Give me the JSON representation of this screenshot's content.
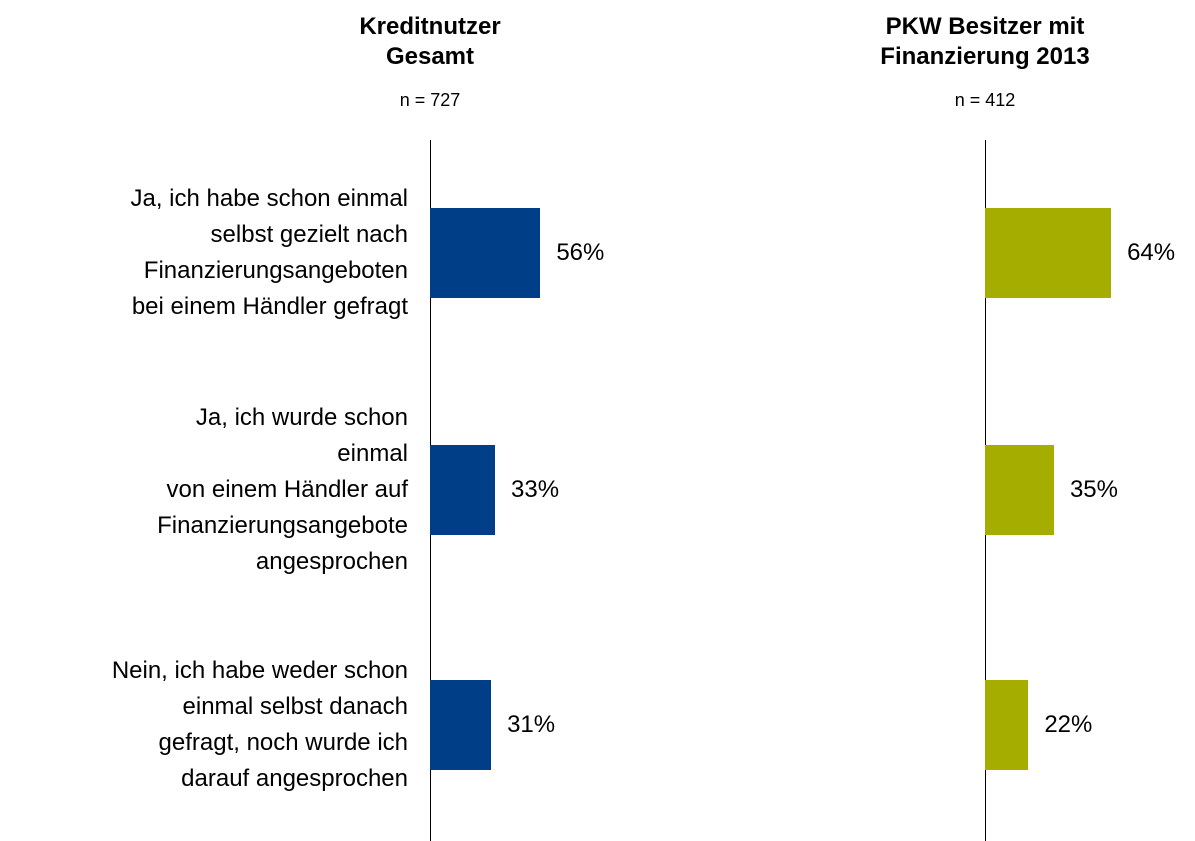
{
  "chart_data": [
    {
      "type": "bar",
      "orientation": "horizontal",
      "title": "Kreditnutzer\nGesamt",
      "subtitle": "n = 727",
      "categories": [
        "Ja, ich habe schon einmal\nselbst gezielt nach\nFinanzierungsangeboten\nbei einem Händler gefragt",
        "Ja, ich wurde schon\neinmal\nvon einem Händler auf\nFinanzierungsangebote\nangesprochen",
        "Nein, ich habe weder schon\neinmal selbst danach\ngefragt, noch wurde ich\ndarauf angesprochen"
      ],
      "values": [
        56,
        33,
        31
      ],
      "value_labels": [
        "56%",
        "33%",
        "31%"
      ],
      "color": "#003f87"
    },
    {
      "type": "bar",
      "orientation": "horizontal",
      "title": "PKW Besitzer mit\nFinanzierung 2013",
      "subtitle": "n = 412",
      "values": [
        64,
        35,
        22
      ],
      "value_labels": [
        "64%",
        "35%",
        "22%"
      ],
      "color": "#a4ad00"
    }
  ]
}
